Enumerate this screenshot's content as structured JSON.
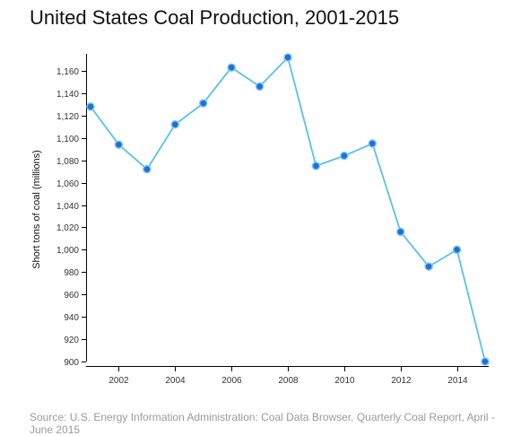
{
  "page": {
    "title": "United States Coal Production, 2001-2015",
    "source": "Source: U.S. Energy Information Administration: Coal Data Browser, Quarterly Coal Report, April - June 2015"
  },
  "chart_data": {
    "type": "line",
    "title": "United States Coal Production, 2001-2015",
    "xlabel": "",
    "ylabel": "Short tons of coal (millions)",
    "x": [
      2001,
      2002,
      2003,
      2004,
      2005,
      2006,
      2007,
      2008,
      2009,
      2010,
      2011,
      2012,
      2013,
      2014,
      2015
    ],
    "y": [
      1128,
      1094,
      1072,
      1112,
      1131,
      1163,
      1146,
      1172,
      1075,
      1084,
      1095,
      1016,
      985,
      1000,
      900
    ],
    "xlim": [
      2001,
      2015
    ],
    "ylim": [
      900,
      1172
    ],
    "x_ticks": [
      2002,
      2004,
      2006,
      2008,
      2010,
      2012,
      2014
    ],
    "x_tick_labels": [
      "2002",
      "2004",
      "2006",
      "2008",
      "2010",
      "2012",
      "2014"
    ],
    "y_ticks": [
      900,
      920,
      940,
      960,
      980,
      1000,
      1020,
      1040,
      1060,
      1080,
      1100,
      1120,
      1140,
      1160
    ],
    "y_tick_labels": [
      "900",
      "920",
      "940",
      "960",
      "980",
      "1,000",
      "1,020",
      "1,040",
      "1,060",
      "1,080",
      "1,100",
      "1,120",
      "1,140",
      "1,160"
    ],
    "grid": false,
    "legend": "none",
    "colors": {
      "line": "#5bc0eb",
      "point": "#1f6fd6",
      "point_ring": "#7cc4f0",
      "axis": "#000000"
    }
  }
}
